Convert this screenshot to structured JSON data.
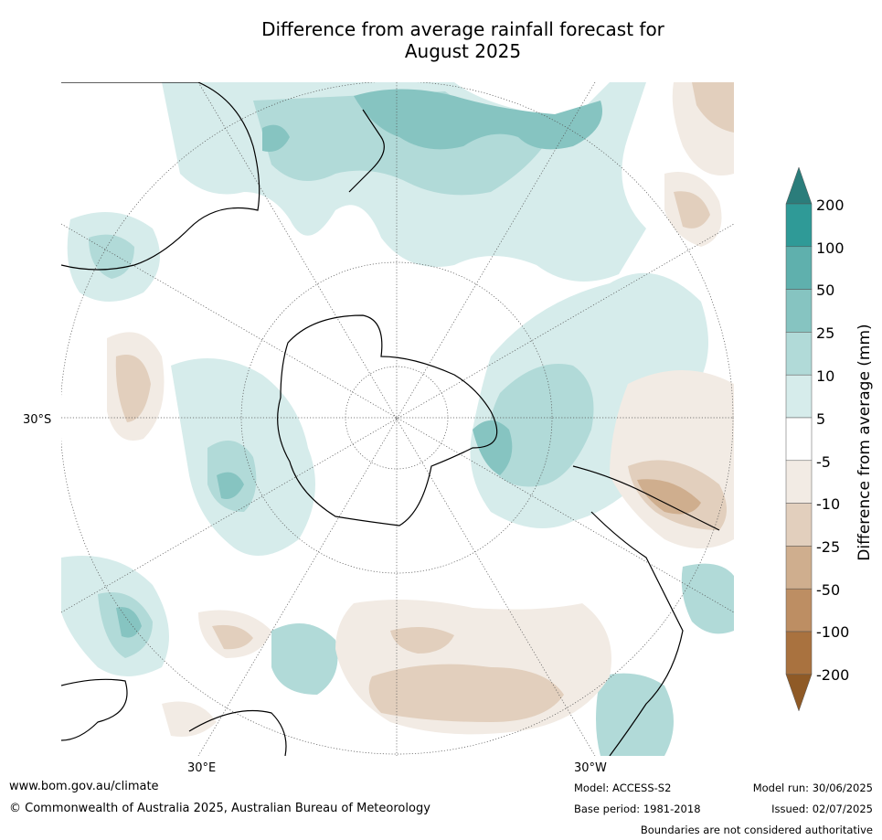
{
  "title": {
    "line1": "Difference from average rainfall forecast for",
    "line2": "August 2025"
  },
  "map": {
    "lat_label_left": "30°S",
    "lon_label_bottom_left": "30°E",
    "lon_label_bottom_right": "30°W",
    "projection": "south-polar stereographic",
    "ocean_color": "#ffffff",
    "coast_color": "#000000",
    "grid_line_style": "dotted"
  },
  "legend": {
    "title": "Difference from average (mm)",
    "levels": [
      "200",
      "100",
      "50",
      "25",
      "10",
      "5",
      "-5",
      "-10",
      "-25",
      "-50",
      "-100",
      "-200"
    ],
    "colors": {
      "over": "#2b7d7b",
      "100_200": "#2f9a97",
      "50_100": "#5fb0ad",
      "25_50": "#86c4c1",
      "10_25": "#b1dad8",
      "5_10": "#d6eceb",
      "neg5_5": "#ffffff",
      "neg10_neg5": "#f2ebe4",
      "neg25_neg10": "#e2cfbd",
      "neg50_neg25": "#cfae8e",
      "neg100_neg50": "#bd8e63",
      "neg200_neg100": "#a9723f",
      "under": "#8f5a26"
    }
  },
  "footer": {
    "website": "www.bom.gov.au/climate",
    "copyright": "© Commonwealth of Australia 2025, Australian Bureau of Meteorology",
    "model": "Model: ACCESS-S2",
    "base_period": "Base period: 1981-2018",
    "model_run": "Model run: 30/06/2025",
    "issued": "Issued: 02/07/2025",
    "disclaimer": "Boundaries are not considered authoritative"
  }
}
